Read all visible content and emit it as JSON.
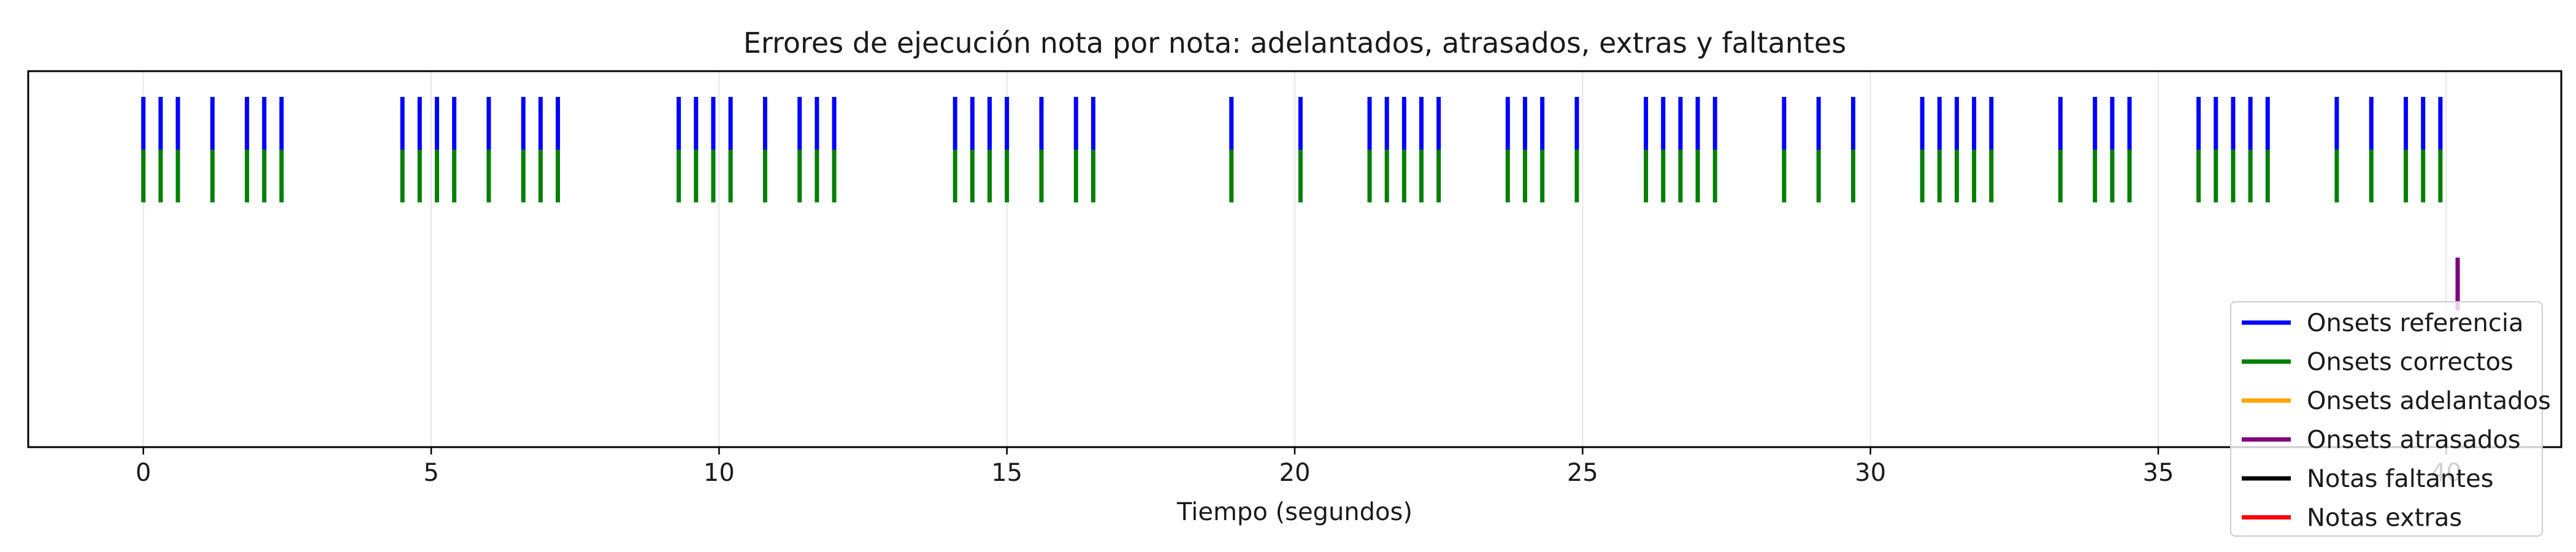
{
  "chart_data": {
    "type": "event-raster",
    "title": "Errores de ejecución nota por nota: adelantados, atrasados, extras y faltantes",
    "xlabel": "Tiempo (segundos)",
    "ylabel": "",
    "xlim": [
      -2.0,
      42.0
    ],
    "xticks": [
      0,
      5,
      10,
      15,
      20,
      25,
      30,
      35,
      40
    ],
    "xtick_labels": [
      "0",
      "5",
      "10",
      "15",
      "20",
      "25",
      "30",
      "35",
      "40"
    ],
    "grid": "vertical",
    "legend_position": "bottom-right",
    "series": [
      {
        "name": "Onsets referencia",
        "color": "#0000ff",
        "row": "top",
        "values": [
          0.0,
          0.3,
          0.6,
          1.2,
          1.8,
          2.1,
          2.4,
          4.5,
          4.8,
          5.1,
          5.4,
          6.0,
          6.6,
          6.9,
          7.2,
          9.3,
          9.6,
          9.9,
          10.2,
          10.8,
          11.4,
          11.7,
          12.0,
          14.1,
          14.4,
          14.7,
          15.0,
          15.6,
          16.2,
          16.5,
          18.9,
          20.1,
          21.3,
          21.6,
          21.9,
          22.2,
          22.5,
          23.7,
          24.0,
          24.3,
          24.9,
          26.1,
          26.4,
          26.7,
          27.0,
          27.3,
          28.5,
          29.1,
          29.7,
          30.9,
          31.2,
          31.5,
          31.8,
          32.1,
          33.3,
          33.9,
          34.2,
          34.5,
          35.7,
          36.0,
          36.3,
          36.6,
          36.9,
          38.1,
          38.7,
          39.3,
          39.6,
          39.9
        ]
      },
      {
        "name": "Onsets correctos",
        "color": "#008000",
        "row": "middle",
        "values": [
          0.0,
          0.3,
          0.6,
          1.2,
          1.8,
          2.1,
          2.4,
          4.5,
          4.8,
          5.1,
          5.4,
          6.0,
          6.6,
          6.9,
          7.2,
          9.3,
          9.6,
          9.9,
          10.2,
          10.8,
          11.4,
          11.7,
          12.0,
          14.1,
          14.4,
          14.7,
          15.0,
          15.6,
          16.2,
          16.5,
          18.9,
          20.1,
          21.3,
          21.6,
          21.9,
          22.2,
          22.5,
          23.7,
          24.0,
          24.3,
          24.9,
          26.1,
          26.4,
          26.7,
          27.0,
          27.3,
          28.5,
          29.1,
          29.7,
          30.9,
          31.2,
          31.5,
          31.8,
          32.1,
          33.3,
          33.9,
          34.2,
          34.5,
          35.7,
          36.0,
          36.3,
          36.6,
          36.9,
          38.1,
          38.7,
          39.3,
          39.6,
          39.9
        ]
      },
      {
        "name": "Onsets adelantados",
        "color": "#ffa500",
        "row": "lower",
        "values": []
      },
      {
        "name": "Onsets atrasados",
        "color": "#800080",
        "row": "lower",
        "values": [
          40.2
        ]
      },
      {
        "name": "Notas faltantes",
        "color": "#000000",
        "row": "bottom",
        "values": []
      },
      {
        "name": "Notas extras",
        "color": "#ff0000",
        "row": "bottom",
        "values": []
      }
    ]
  }
}
